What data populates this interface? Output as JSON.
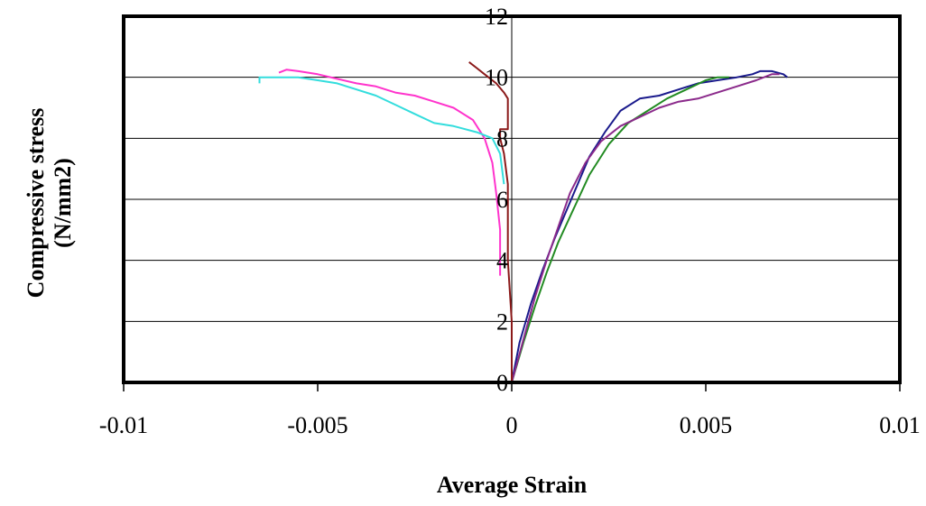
{
  "chart_data": {
    "type": "line",
    "title": "",
    "xlabel": "Average Strain",
    "ylabel": "Compressive stress (N/mm2)",
    "ylabel_lines": [
      "Compressive stress",
      "(N/mm2)"
    ],
    "xlim": [
      -0.01,
      0.01
    ],
    "ylim": [
      0,
      12
    ],
    "xticks": [
      -0.01,
      -0.005,
      0,
      0.005,
      0.01
    ],
    "xtick_labels": [
      "-0.01",
      "-0.005",
      "0",
      "0.005",
      "0.01"
    ],
    "yticks": [
      0,
      2,
      4,
      6,
      8,
      10,
      12
    ],
    "ytick_labels": [
      "0",
      "2",
      "4",
      "6",
      "8",
      "10",
      "12"
    ],
    "grid": "horizontal",
    "legend": "none",
    "series": [
      {
        "color": "#1a1a8c",
        "x": [
          0,
          0.0002,
          0.0005,
          0.0008,
          0.0011,
          0.0014,
          0.0017,
          0.002,
          0.0024,
          0.0028,
          0.0033,
          0.0038,
          0.0043,
          0.0048,
          0.0053,
          0.0058,
          0.0062,
          0.0064,
          0.0067,
          0.007,
          0.0071
        ],
        "y": [
          0,
          1.3,
          2.6,
          3.7,
          4.7,
          5.6,
          6.5,
          7.4,
          8.2,
          8.9,
          9.3,
          9.4,
          9.6,
          9.8,
          9.9,
          10.0,
          10.1,
          10.2,
          10.2,
          10.1,
          10.0
        ]
      },
      {
        "color": "#228b22",
        "x": [
          0,
          0.0003,
          0.0006,
          0.0009,
          0.0012,
          0.0016,
          0.002,
          0.0025,
          0.003,
          0.0035,
          0.004,
          0.0045,
          0.005,
          0.0053,
          0.0056
        ],
        "y": [
          0,
          1.3,
          2.5,
          3.6,
          4.6,
          5.7,
          6.8,
          7.8,
          8.5,
          8.9,
          9.3,
          9.6,
          9.9,
          10.0,
          10.0
        ]
      },
      {
        "color": "#8b2a8b",
        "x": [
          0,
          0.0003,
          0.0006,
          0.0009,
          0.0012,
          0.0015,
          0.0019,
          0.0023,
          0.0028,
          0.0033,
          0.0038,
          0.0043,
          0.0048,
          0.0053,
          0.0058,
          0.0063,
          0.0067,
          0.0069
        ],
        "y": [
          0,
          1.4,
          2.8,
          4.0,
          5.1,
          6.2,
          7.2,
          7.9,
          8.4,
          8.7,
          9.0,
          9.2,
          9.3,
          9.5,
          9.7,
          9.9,
          10.1,
          10.1
        ]
      },
      {
        "color": "#ff33cc",
        "x": [
          -0.0003,
          -0.0003,
          -0.0004,
          -0.0005,
          -0.0007,
          -0.001,
          -0.0015,
          -0.002,
          -0.0025,
          -0.003,
          -0.0035,
          -0.004,
          -0.0045,
          -0.005,
          -0.0055,
          -0.0058,
          -0.006
        ],
        "y": [
          3.5,
          5.0,
          6.2,
          7.2,
          8.0,
          8.6,
          9.0,
          9.2,
          9.4,
          9.5,
          9.7,
          9.8,
          9.95,
          10.1,
          10.2,
          10.25,
          10.15
        ]
      },
      {
        "color": "#33dddd",
        "x": [
          -0.0002,
          -0.0003,
          -0.0005,
          -0.0009,
          -0.0015,
          -0.002,
          -0.0025,
          -0.003,
          -0.0035,
          -0.004,
          -0.0045,
          -0.005,
          -0.0055,
          -0.006,
          -0.0065,
          -0.0065
        ],
        "y": [
          6.5,
          7.5,
          8.0,
          8.2,
          8.4,
          8.5,
          8.8,
          9.1,
          9.4,
          9.6,
          9.8,
          9.9,
          10.0,
          10.0,
          10.0,
          9.8
        ]
      },
      {
        "color": "#8b1a1a",
        "x": [
          0,
          0,
          -0.0001,
          -0.0001,
          -0.0002,
          -0.0003,
          -0.0003,
          -0.0001,
          -0.0001,
          -0.0002,
          -0.0004,
          -0.0007,
          -0.0009,
          -0.0011
        ],
        "y": [
          0,
          2.0,
          4.0,
          6.5,
          7.5,
          8.0,
          8.3,
          8.3,
          9.3,
          9.5,
          9.8,
          10.1,
          10.3,
          10.5
        ]
      }
    ]
  }
}
